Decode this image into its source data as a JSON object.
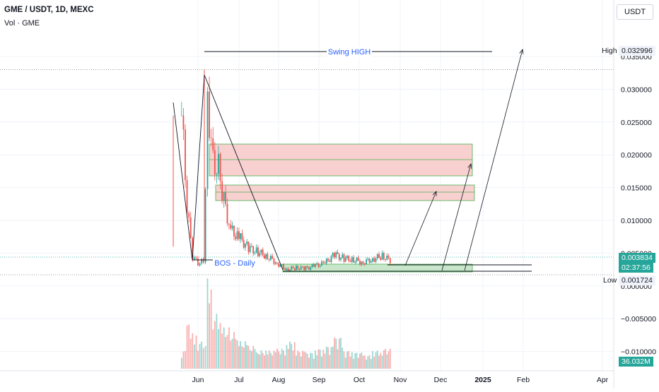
{
  "header": {
    "symbol_line": "GME / USDT, 1D, MEXC",
    "volume_line": "Vol · GME",
    "currency_button": "USDT"
  },
  "price_axis": {
    "labels": [
      "0.035000",
      "0.030000",
      "0.025000",
      "0.020000",
      "0.015000",
      "0.010000",
      "0.005000",
      "0.000000",
      "−0.005000",
      "−0.010000"
    ],
    "high_label": "High",
    "high_value": "0.032996",
    "low_label": "Low",
    "low_value": "0.001724",
    "last_price": "0.003834",
    "countdown": "02:37:56",
    "volume_value": "36.032M",
    "last_price_color": "#26a69a"
  },
  "time_axis": {
    "labels": [
      "Jun",
      "Jul",
      "Aug",
      "Sep",
      "Oct",
      "Nov",
      "Dec",
      "2025",
      "Feb",
      "Apr"
    ]
  },
  "annotations": {
    "swing_high": "Swing HIGH",
    "bos": "BOS - Daily",
    "annotation_color": "#2962ff"
  },
  "colors": {
    "up": "#26a69a",
    "down": "#ef5350",
    "zone_supply_fill": "#f8d0d0",
    "zone_supply_border": "#4caf50",
    "zone_demand_fill": "#c8e6c9",
    "zone_demand_border": "#4caf50"
  },
  "chart_data": {
    "type": "candlestick",
    "title": "GME / USDT, 1D, MEXC",
    "ylim": [
      -0.0125,
      0.0375
    ],
    "grid": true,
    "x": [
      "2024-05-20",
      "2024-05-24",
      "2024-05-28",
      "2024-06-01",
      "2024-06-05",
      "2024-06-08",
      "2024-06-12",
      "2024-06-16",
      "2024-06-20",
      "2024-06-25",
      "2024-07-01",
      "2024-07-08",
      "2024-07-15",
      "2024-07-22",
      "2024-07-29",
      "2024-08-05",
      "2024-08-12",
      "2024-08-19",
      "2024-08-26",
      "2024-09-02",
      "2024-09-09",
      "2024-09-16",
      "2024-09-23",
      "2024-09-30",
      "2024-10-07",
      "2024-10-14",
      "2024-10-21"
    ],
    "close": [
      0.026,
      0.012,
      0.0045,
      0.0035,
      0.0038,
      0.029,
      0.019,
      0.018,
      0.013,
      0.0085,
      0.0075,
      0.0058,
      0.0052,
      0.0045,
      0.0035,
      0.0025,
      0.0028,
      0.0027,
      0.0031,
      0.0035,
      0.0048,
      0.0042,
      0.004,
      0.0036,
      0.0041,
      0.0046,
      0.0038
    ],
    "volume_relative": [
      0.2,
      0.5,
      0.4,
      0.3,
      0.25,
      1.0,
      0.6,
      0.5,
      0.45,
      0.4,
      0.3,
      0.25,
      0.2,
      0.2,
      0.22,
      0.3,
      0.2,
      0.18,
      0.22,
      0.25,
      0.35,
      0.2,
      0.18,
      0.15,
      0.2,
      0.22,
      0.15
    ],
    "levels": {
      "swing_high": 0.032996,
      "low": 0.001724,
      "last": 0.003834
    }
  }
}
